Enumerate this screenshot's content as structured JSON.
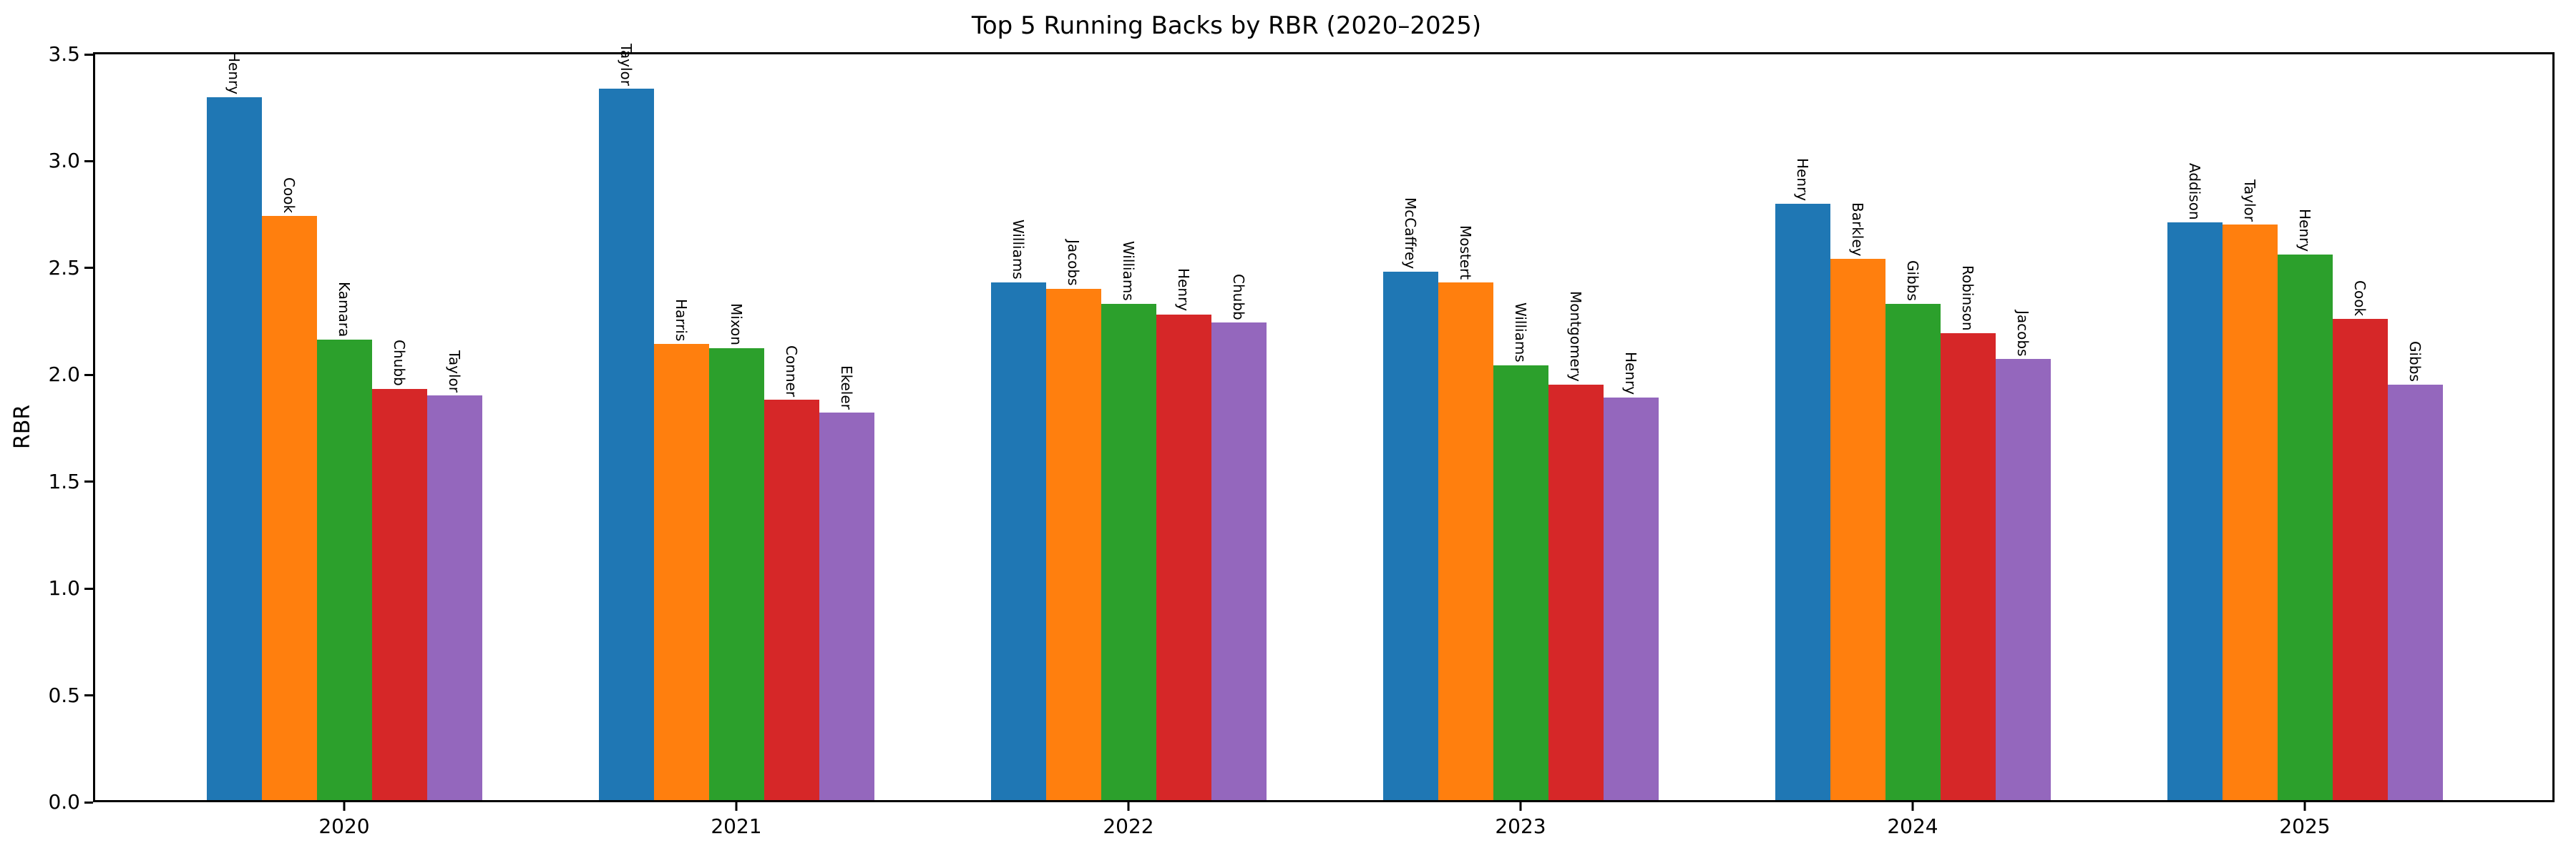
{
  "title": "Top 5 Running Backs by RBR (2020–2025)",
  "chart_data": {
    "type": "bar",
    "title": "Top 5 Running Backs by RBR (2020–2025)",
    "xlabel": "",
    "ylabel": "RBR",
    "ylim": [
      0,
      3.5
    ],
    "yticks": [
      0.0,
      0.5,
      1.0,
      1.5,
      2.0,
      2.5,
      3.0,
      3.5
    ],
    "grid": false,
    "legend": "none",
    "bar_colors": [
      "#1f77b4",
      "#ff7f0e",
      "#2ca02c",
      "#d62728",
      "#9467bd"
    ],
    "categories": [
      "2020",
      "2021",
      "2022",
      "2023",
      "2024",
      "2025"
    ],
    "groups": [
      {
        "year": "2020",
        "bars": [
          {
            "label": "Henry",
            "value": 3.3
          },
          {
            "label": "Cook",
            "value": 2.74
          },
          {
            "label": "Kamara",
            "value": 2.16
          },
          {
            "label": "Chubb",
            "value": 1.93
          },
          {
            "label": "Taylor",
            "value": 1.9
          }
        ]
      },
      {
        "year": "2021",
        "bars": [
          {
            "label": "Taylor",
            "value": 3.34
          },
          {
            "label": "Harris",
            "value": 2.14
          },
          {
            "label": "Mixon",
            "value": 2.12
          },
          {
            "label": "Conner",
            "value": 1.88
          },
          {
            "label": "Ekeler",
            "value": 1.82
          }
        ]
      },
      {
        "year": "2022",
        "bars": [
          {
            "label": "Williams",
            "value": 2.43
          },
          {
            "label": "Jacobs",
            "value": 2.4
          },
          {
            "label": "Williams",
            "value": 2.33
          },
          {
            "label": "Henry",
            "value": 2.28
          },
          {
            "label": "Chubb",
            "value": 2.24
          }
        ]
      },
      {
        "year": "2023",
        "bars": [
          {
            "label": "McCaffrey",
            "value": 2.48
          },
          {
            "label": "Mostert",
            "value": 2.43
          },
          {
            "label": "Williams",
            "value": 2.04
          },
          {
            "label": "Montgomery",
            "value": 1.95
          },
          {
            "label": "Henry",
            "value": 1.89
          }
        ]
      },
      {
        "year": "2024",
        "bars": [
          {
            "label": "Henry",
            "value": 2.8
          },
          {
            "label": "Barkley",
            "value": 2.54
          },
          {
            "label": "Gibbs",
            "value": 2.33
          },
          {
            "label": "Robinson",
            "value": 2.19
          },
          {
            "label": "Jacobs",
            "value": 2.07
          }
        ]
      },
      {
        "year": "2025",
        "bars": [
          {
            "label": "Addison",
            "value": 2.71
          },
          {
            "label": "Taylor",
            "value": 2.7
          },
          {
            "label": "Henry",
            "value": 2.56
          },
          {
            "label": "Cook",
            "value": 2.26
          },
          {
            "label": "Gibbs",
            "value": 1.95
          }
        ]
      }
    ]
  }
}
